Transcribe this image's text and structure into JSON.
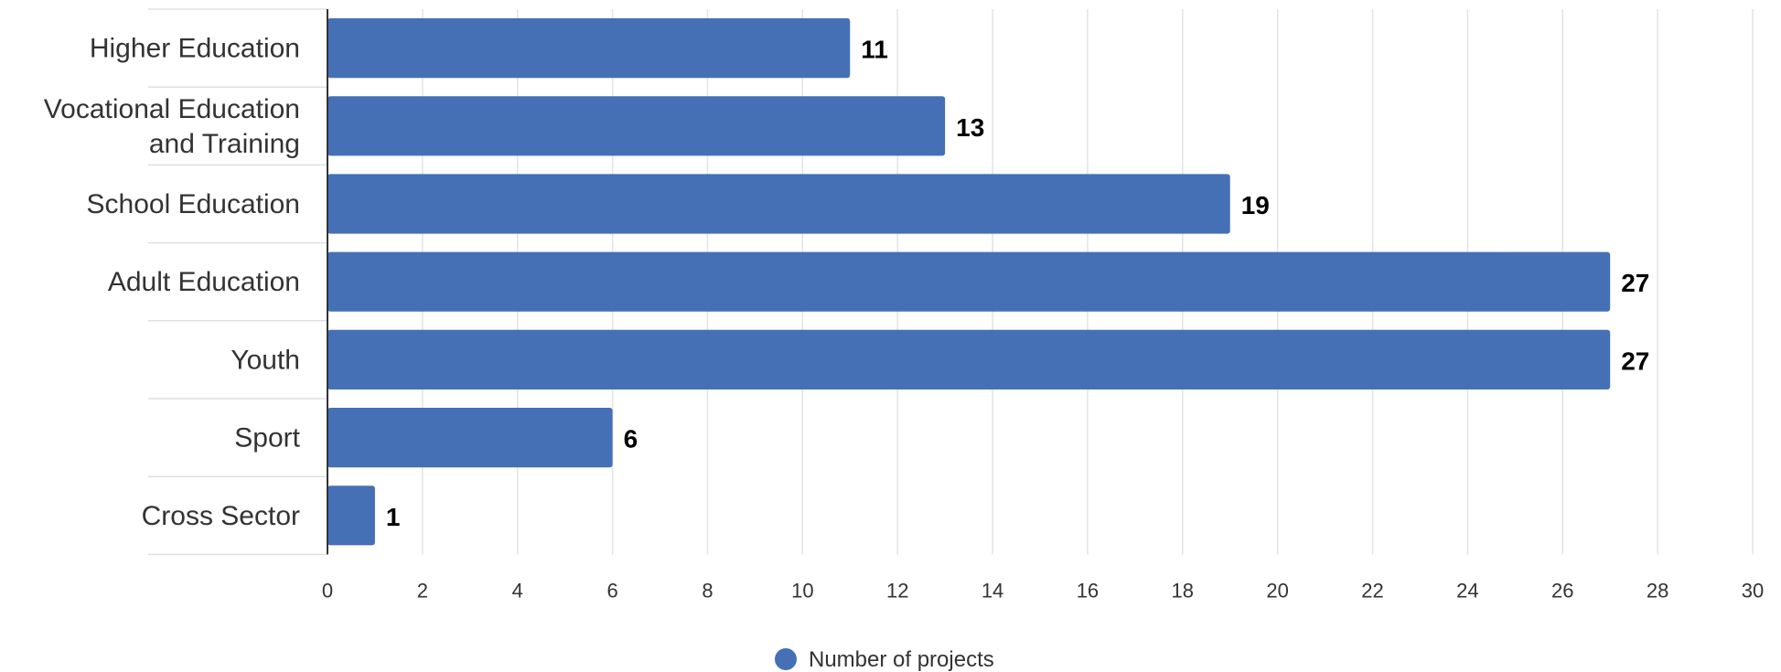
{
  "chart_data": {
    "type": "bar",
    "orientation": "horizontal",
    "categories": [
      "Higher Education",
      "Vocational Education and Training",
      "School Education",
      "Adult Education",
      "Youth",
      "Sport",
      "Cross Sector"
    ],
    "series": [
      {
        "name": "Number of projects",
        "values": [
          11,
          13,
          19,
          27,
          27,
          6,
          1
        ],
        "color": "#4570b6"
      }
    ],
    "x_ticks": [
      0,
      2,
      4,
      6,
      8,
      10,
      12,
      14,
      16,
      18,
      20,
      22,
      24,
      26,
      28,
      30
    ],
    "xlim": [
      0,
      30
    ],
    "grid": true,
    "data_labels": true,
    "legend_position": "bottom-center"
  }
}
